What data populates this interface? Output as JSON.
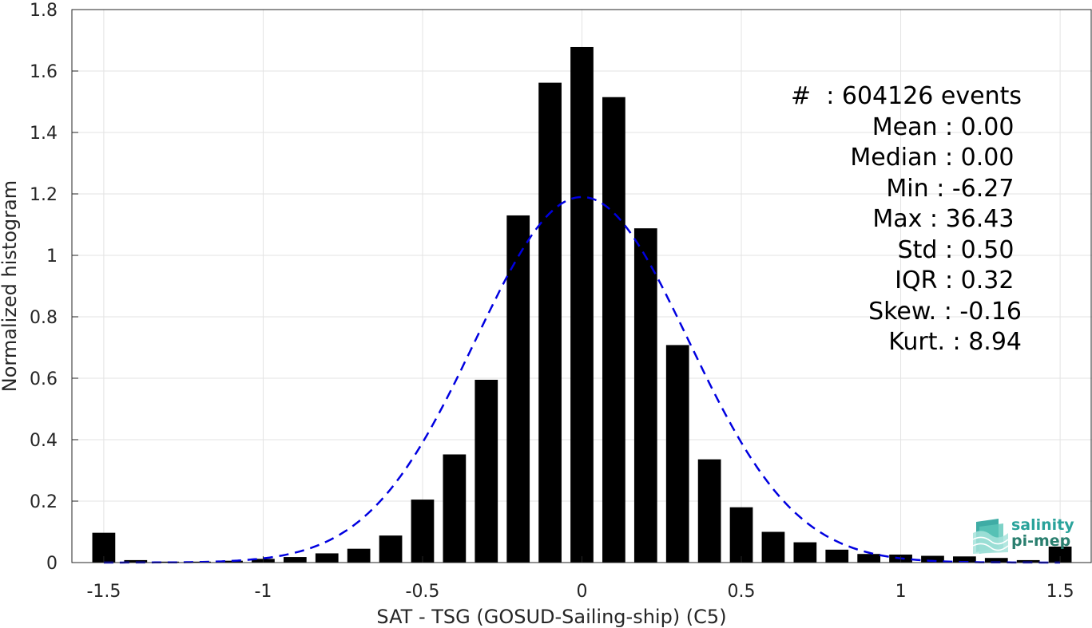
{
  "chart_data": {
    "type": "bar",
    "xlabel": "SAT - TSG (GOSUD-Sailing-ship) (C5)",
    "ylabel": "Normalized histogram",
    "xlim": [
      -1.6,
      1.6
    ],
    "ylim": [
      0,
      1.8
    ],
    "xticks": [
      "-1.5",
      "-1",
      "-0.5",
      "0",
      "0.5",
      "1",
      "1.5"
    ],
    "xtick_values": [
      -1.5,
      -1,
      -0.5,
      0,
      0.5,
      1,
      1.5
    ],
    "yticks": [
      "0",
      "0.2",
      "0.4",
      "0.6",
      "0.8",
      "1",
      "1.2",
      "1.4",
      "1.6",
      "1.8"
    ],
    "ytick_values": [
      0,
      0.2,
      0.4,
      0.6,
      0.8,
      1,
      1.2,
      1.4,
      1.6,
      1.8
    ],
    "grid": true,
    "bar_color": "#000000",
    "bins": [
      {
        "x": -1.5,
        "y": 0.097
      },
      {
        "x": -1.4,
        "y": 0.008
      },
      {
        "x": -1.3,
        "y": 0.003
      },
      {
        "x": -1.2,
        "y": 0.003
      },
      {
        "x": -1.1,
        "y": 0.006
      },
      {
        "x": -1.0,
        "y": 0.012
      },
      {
        "x": -0.9,
        "y": 0.018
      },
      {
        "x": -0.8,
        "y": 0.03
      },
      {
        "x": -0.7,
        "y": 0.045
      },
      {
        "x": -0.6,
        "y": 0.088
      },
      {
        "x": -0.5,
        "y": 0.205
      },
      {
        "x": -0.4,
        "y": 0.352
      },
      {
        "x": -0.3,
        "y": 0.595
      },
      {
        "x": -0.2,
        "y": 1.13
      },
      {
        "x": -0.1,
        "y": 1.562
      },
      {
        "x": 0.0,
        "y": 1.678
      },
      {
        "x": 0.1,
        "y": 1.515
      },
      {
        "x": 0.2,
        "y": 1.088
      },
      {
        "x": 0.3,
        "y": 0.708
      },
      {
        "x": 0.4,
        "y": 0.336
      },
      {
        "x": 0.5,
        "y": 0.18
      },
      {
        "x": 0.6,
        "y": 0.1
      },
      {
        "x": 0.7,
        "y": 0.066
      },
      {
        "x": 0.8,
        "y": 0.042
      },
      {
        "x": 0.9,
        "y": 0.028
      },
      {
        "x": 1.0,
        "y": 0.026
      },
      {
        "x": 1.1,
        "y": 0.022
      },
      {
        "x": 1.2,
        "y": 0.02
      },
      {
        "x": 1.3,
        "y": 0.015
      },
      {
        "x": 1.4,
        "y": 0.008
      },
      {
        "x": 1.5,
        "y": 0.052
      }
    ],
    "fit": {
      "type": "gaussian",
      "mean": 0.0,
      "std": 0.335,
      "peak": 1.19,
      "color": "#0000e0",
      "style": "dashed"
    }
  },
  "stats": {
    "events": "#  : 604126 events",
    "mean": "Mean : 0.00 ",
    "median": "Median : 0.00 ",
    "min": "Min : -6.27 ",
    "max": "Max : 36.43 ",
    "std": "Std : 0.50 ",
    "iqr": "IQR : 0.32 ",
    "skew": "Skew. : -0.16",
    "kurt": "Kurt. : 8.94"
  },
  "logo": {
    "line1": "salinity",
    "line2": "pi-mep",
    "color1": "#2aa39b",
    "color2": "#2a7f6f"
  }
}
